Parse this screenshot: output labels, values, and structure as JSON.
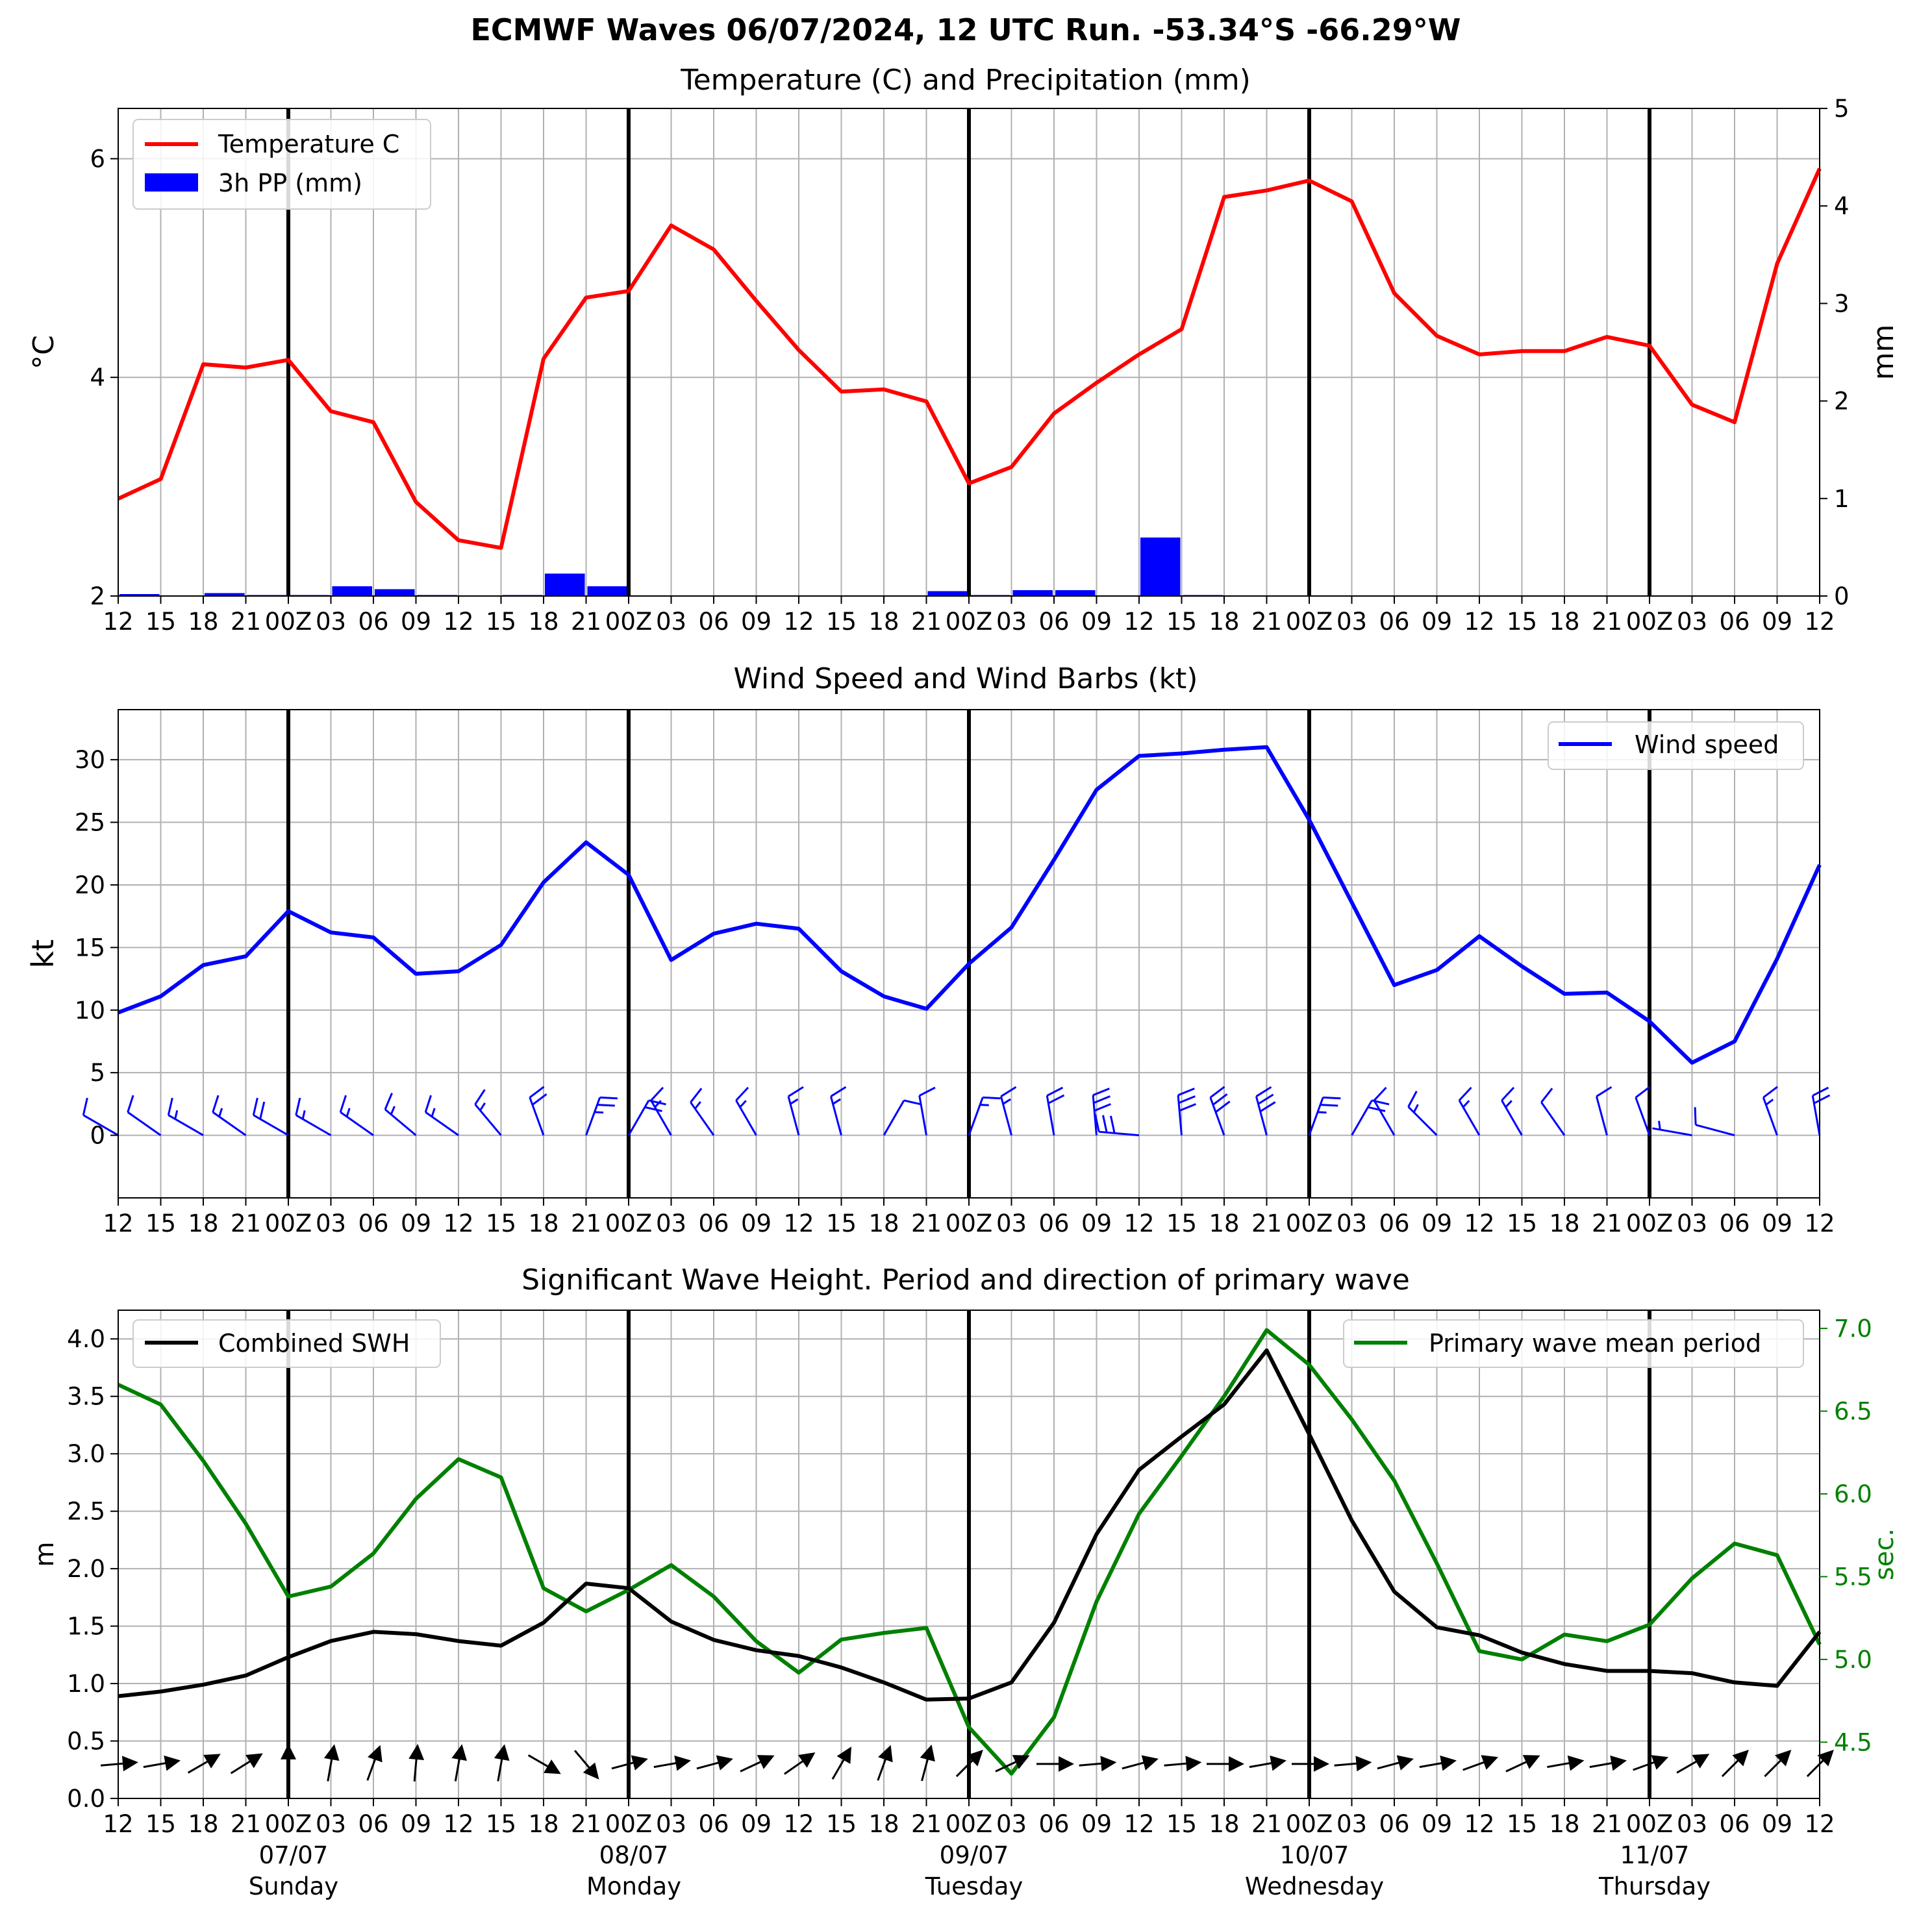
{
  "figure_title": "ECMWF Waves 06/07/2024, 12 UTC Run. -53.34°S -66.29°W",
  "colors": {
    "temperature": "#ff0000",
    "precip": "#0000ff",
    "wind": "#0000ff",
    "barbs": "#0000ff",
    "swh": "#000000",
    "period": "#008000",
    "grid": "#b0b0b0",
    "day_line": "#000000"
  },
  "x_tick_labels": [
    "12",
    "15",
    "18",
    "21",
    "00Z",
    "03",
    "06",
    "09",
    "12",
    "15",
    "18",
    "21",
    "00Z",
    "03",
    "06",
    "09",
    "12",
    "15",
    "18",
    "21",
    "00Z",
    "03",
    "06",
    "09",
    "12",
    "15",
    "18",
    "21",
    "00Z",
    "03",
    "06",
    "09",
    "12",
    "15",
    "18",
    "21",
    "00Z",
    "03",
    "06",
    "09",
    "12"
  ],
  "day_labels": [
    {
      "date": "07/07",
      "day": "Sunday"
    },
    {
      "date": "08/07",
      "day": "Monday"
    },
    {
      "date": "09/07",
      "day": "Tuesday"
    },
    {
      "date": "10/07",
      "day": "Wednesday"
    },
    {
      "date": "11/07",
      "day": "Thursday"
    }
  ],
  "chart_data": [
    {
      "type": "line",
      "title": "Temperature (C) and Precipitation (mm)",
      "ylabel": "$^\\circ$C",
      "y2label": "mm",
      "ylim": [
        2.0,
        6.46
      ],
      "yticks": [
        "2",
        "4",
        "6"
      ],
      "y2lim": [
        0,
        5
      ],
      "y2ticks": [
        "0",
        "1",
        "2",
        "3",
        "4",
        "5"
      ],
      "legend": "upper-left",
      "grid": true,
      "series": [
        {
          "name": "Temperature C",
          "type": "line",
          "values": [
            2.89,
            3.07,
            4.12,
            4.09,
            4.16,
            3.69,
            3.59,
            2.86,
            2.51,
            2.44,
            4.17,
            4.73,
            4.79,
            5.39,
            5.17,
            4.7,
            4.25,
            3.87,
            3.89,
            3.78,
            3.03,
            3.18,
            3.67,
            3.95,
            4.21,
            4.44,
            5.65,
            5.71,
            5.8,
            5.61,
            4.77,
            4.38,
            4.21,
            4.24,
            4.24,
            4.37,
            4.29,
            3.75,
            3.59,
            5.04,
            5.91
          ]
        },
        {
          "name": "3h PP (mm)",
          "type": "bar",
          "values": [
            0.02,
            0.0,
            0.03,
            0.01,
            0.01,
            0.1,
            0.07,
            0.01,
            0.0,
            0.01,
            0.23,
            0.1,
            0.0,
            0.0,
            0.0,
            0.0,
            0.0,
            0.0,
            0.0,
            0.05,
            0.01,
            0.06,
            0.06,
            0.0,
            0.6,
            0.01,
            0.0,
            0.0,
            0.0,
            0.0,
            0.0,
            0.0,
            0.0,
            0.0,
            0.0,
            0.0,
            0.0,
            0.0,
            0.0,
            0.0
          ]
        }
      ]
    },
    {
      "type": "line",
      "title": "Wind Speed and Wind Barbs (kt)",
      "ylabel": "kt",
      "ylim": [
        -5,
        34
      ],
      "yticks": [
        "0",
        "5",
        "10",
        "15",
        "20",
        "25",
        "30"
      ],
      "legend": "upper-right",
      "grid": true,
      "series": [
        {
          "name": "Wind speed",
          "values": [
            9.8,
            11.1,
            13.6,
            14.3,
            17.9,
            16.2,
            15.8,
            12.9,
            13.1,
            15.2,
            20.2,
            23.4,
            20.8,
            14.0,
            16.1,
            16.9,
            16.5,
            13.1,
            11.1,
            10.1,
            13.7,
            16.6,
            22.0,
            27.6,
            30.3,
            30.5,
            30.8,
            31.0,
            25.2,
            18.6,
            12.0,
            13.2,
            15.9,
            13.5,
            11.3,
            11.4,
            9.1,
            5.8,
            7.5,
            14.1,
            21.6
          ]
        }
      ],
      "barbs": {
        "y": 0,
        "direction_deg": [
          300,
          305,
          300,
          305,
          300,
          300,
          305,
          310,
          305,
          320,
          340,
          20,
          30,
          330,
          325,
          330,
          345,
          345,
          30,
          350,
          20,
          345,
          350,
          355,
          275,
          355,
          340,
          345,
          20,
          30,
          330,
          315,
          330,
          330,
          325,
          345,
          340,
          280,
          285,
          340,
          350
        ],
        "speed_kt": [
          9.8,
          11.1,
          13.6,
          14.3,
          17.9,
          16.2,
          15.8,
          12.9,
          13.1,
          15.2,
          20.2,
          23.4,
          20.8,
          14.0,
          16.1,
          16.9,
          16.5,
          13.1,
          11.1,
          10.1,
          13.7,
          16.6,
          22.0,
          27.6,
          30.3,
          30.5,
          30.8,
          31.0,
          25.2,
          18.6,
          12.0,
          13.2,
          15.9,
          13.5,
          11.3,
          11.4,
          9.1,
          5.8,
          7.5,
          14.1,
          21.6
        ]
      }
    },
    {
      "type": "line",
      "title": "Significant Wave Height. Period and direction of primary wave",
      "ylabel": "m",
      "y2label": "sec.",
      "ylim": [
        0,
        4.25
      ],
      "yticks": [
        "0.0",
        "0.5",
        "1.0",
        "1.5",
        "2.0",
        "2.5",
        "3.0",
        "3.5",
        "4.0"
      ],
      "y2lim": [
        4.16,
        7.11
      ],
      "y2ticks": [
        "4.5",
        "5.0",
        "5.5",
        "6.0",
        "6.5",
        "7.0"
      ],
      "grid": true,
      "series": [
        {
          "name": "Combined SWH",
          "axis": "left",
          "legend": "upper-left",
          "values": [
            0.89,
            0.93,
            0.99,
            1.07,
            1.23,
            1.37,
            1.45,
            1.43,
            1.37,
            1.33,
            1.53,
            1.87,
            1.83,
            1.54,
            1.38,
            1.29,
            1.24,
            1.14,
            1.01,
            0.86,
            0.87,
            1.01,
            1.53,
            2.3,
            2.86,
            3.15,
            3.43,
            3.9,
            3.17,
            2.42,
            1.8,
            1.49,
            1.42,
            1.27,
            1.17,
            1.11,
            1.11,
            1.09,
            1.01,
            0.98,
            1.45
          ]
        },
        {
          "name": "Primary wave mean period",
          "axis": "right",
          "legend": "upper-right",
          "values": [
            6.66,
            6.54,
            6.2,
            5.82,
            5.38,
            5.44,
            5.64,
            5.97,
            6.21,
            6.1,
            5.43,
            5.29,
            5.42,
            5.57,
            5.38,
            5.11,
            4.92,
            5.12,
            5.16,
            5.19,
            4.59,
            4.31,
            4.65,
            5.35,
            5.88,
            6.23,
            6.59,
            6.99,
            6.78,
            6.45,
            6.08,
            5.58,
            5.05,
            5.0,
            5.15,
            5.11,
            5.21,
            5.49,
            5.7,
            5.63,
            5.09
          ]
        }
      ],
      "wave_direction_deg": [
        265,
        260,
        240,
        238,
        180,
        190,
        200,
        185,
        190,
        190,
        300,
        320,
        255,
        260,
        255,
        245,
        235,
        210,
        200,
        195,
        225,
        245,
        270,
        265,
        255,
        265,
        270,
        260,
        270,
        265,
        255,
        260,
        250,
        245,
        260,
        260,
        250,
        240,
        225,
        225,
        225
      ]
    }
  ]
}
